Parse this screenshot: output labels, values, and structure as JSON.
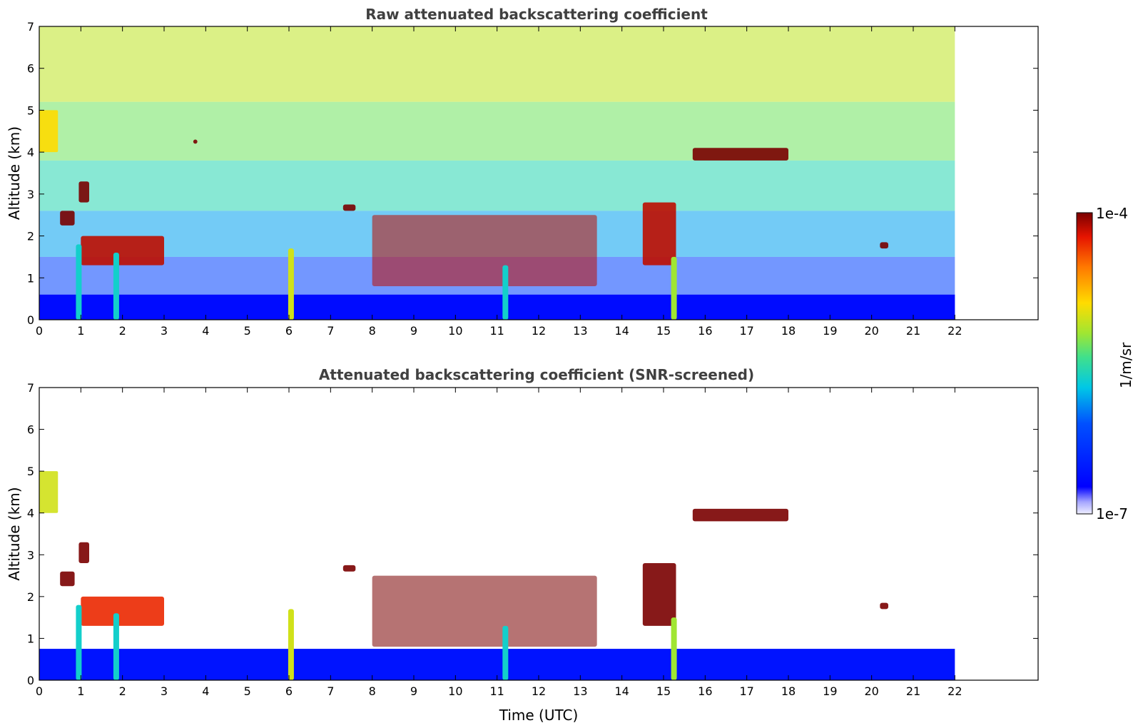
{
  "chart_data": [
    {
      "type": "heatmap",
      "title": "Raw attenuated backscattering coefficient",
      "xlabel": "",
      "ylabel": "Altitude (km)",
      "xlim": [
        0,
        24
      ],
      "ylim": [
        0,
        7
      ],
      "x_ticks": [
        "0",
        "1",
        "2",
        "3",
        "4",
        "5",
        "6",
        "7",
        "8",
        "9",
        "10",
        "11",
        "12",
        "13",
        "14",
        "15",
        "16",
        "17",
        "18",
        "19",
        "20",
        "21",
        "22"
      ],
      "y_ticks": [
        "0",
        "1",
        "2",
        "3",
        "4",
        "5",
        "6",
        "7"
      ],
      "data_end_time": 22,
      "grid": false,
      "features": [
        {
          "kind": "boundary_layer",
          "t_start": 0,
          "t_end": 22,
          "top_km": 0.6,
          "level": 0.12
        },
        {
          "kind": "plume",
          "t_start": 0.0,
          "t_end": 0.45,
          "bottom_km": 4.0,
          "top_km": 5.0,
          "level": 0.7
        },
        {
          "kind": "cloud",
          "t_start": 0.5,
          "t_end": 0.85,
          "bottom_km": 2.25,
          "top_km": 2.6,
          "level": 1.0
        },
        {
          "kind": "cloud",
          "t_start": 0.95,
          "t_end": 1.2,
          "bottom_km": 2.8,
          "top_km": 3.3,
          "level": 1.0
        },
        {
          "kind": "cloud",
          "t_start": 1.0,
          "t_end": 3.0,
          "bottom_km": 1.3,
          "top_km": 2.0,
          "level": 0.95
        },
        {
          "kind": "cloud",
          "t_start": 3.7,
          "t_end": 3.8,
          "bottom_km": 4.2,
          "top_km": 4.3,
          "level": 1.0
        },
        {
          "kind": "cloud",
          "t_start": 7.3,
          "t_end": 7.6,
          "bottom_km": 2.6,
          "top_km": 2.75,
          "level": 1.0
        },
        {
          "kind": "cloud",
          "t_start": 8.0,
          "t_end": 13.4,
          "bottom_km": 0.8,
          "top_km": 2.5,
          "level": 0.95
        },
        {
          "kind": "cloud",
          "t_start": 14.5,
          "t_end": 15.3,
          "bottom_km": 1.3,
          "top_km": 2.8,
          "level": 0.95
        },
        {
          "kind": "cloud",
          "t_start": 15.7,
          "t_end": 18.0,
          "bottom_km": 3.8,
          "top_km": 4.1,
          "level": 1.0
        },
        {
          "kind": "cloud",
          "t_start": 20.2,
          "t_end": 20.4,
          "bottom_km": 1.7,
          "top_km": 1.85,
          "level": 1.0
        },
        {
          "kind": "precipitation",
          "t": 0.95,
          "bottom_km": 0.0,
          "top_km": 1.8,
          "level": 0.45
        },
        {
          "kind": "precipitation",
          "t": 1.85,
          "bottom_km": 0.0,
          "top_km": 1.6,
          "level": 0.45
        },
        {
          "kind": "precipitation",
          "t": 6.05,
          "bottom_km": 0.0,
          "top_km": 1.7,
          "level": 0.65
        },
        {
          "kind": "precipitation",
          "t": 11.2,
          "bottom_km": 0.0,
          "top_km": 1.3,
          "level": 0.45
        },
        {
          "kind": "precipitation",
          "t": 15.25,
          "bottom_km": 0.0,
          "top_km": 1.5,
          "level": 0.6
        }
      ]
    },
    {
      "type": "heatmap",
      "title": "Attenuated backscattering coefficient (SNR-screened)",
      "xlabel": "Time (UTC)",
      "ylabel": "Altitude (km)",
      "xlim": [
        0,
        24
      ],
      "ylim": [
        0,
        7
      ],
      "x_ticks": [
        "0",
        "1",
        "2",
        "3",
        "4",
        "5",
        "6",
        "7",
        "8",
        "9",
        "10",
        "11",
        "12",
        "13",
        "14",
        "15",
        "16",
        "17",
        "18",
        "19",
        "20",
        "21",
        "22"
      ],
      "y_ticks": [
        "0",
        "1",
        "2",
        "3",
        "4",
        "5",
        "6",
        "7"
      ],
      "data_end_time": 22,
      "grid": false,
      "features": [
        {
          "kind": "boundary_layer",
          "t_start": 0,
          "t_end": 22,
          "top_km": 0.75,
          "level": 0.14
        },
        {
          "kind": "plume",
          "t_start": 0.0,
          "t_end": 0.45,
          "bottom_km": 4.0,
          "top_km": 5.0,
          "level": 0.65
        },
        {
          "kind": "cloud",
          "t_start": 0.5,
          "t_end": 0.85,
          "bottom_km": 2.25,
          "top_km": 2.6,
          "level": 1.0
        },
        {
          "kind": "cloud",
          "t_start": 0.95,
          "t_end": 1.2,
          "bottom_km": 2.8,
          "top_km": 3.3,
          "level": 1.0
        },
        {
          "kind": "cloud",
          "t_start": 1.0,
          "t_end": 3.0,
          "bottom_km": 1.3,
          "top_km": 2.0,
          "level": 0.9
        },
        {
          "kind": "cloud",
          "t_start": 7.3,
          "t_end": 7.6,
          "bottom_km": 2.6,
          "top_km": 2.75,
          "level": 1.0
        },
        {
          "kind": "cloud",
          "t_start": 8.0,
          "t_end": 13.4,
          "bottom_km": 0.8,
          "top_km": 2.5,
          "level": 1.0
        },
        {
          "kind": "cloud",
          "t_start": 14.5,
          "t_end": 15.3,
          "bottom_km": 1.3,
          "top_km": 2.8,
          "level": 1.0
        },
        {
          "kind": "cloud",
          "t_start": 15.7,
          "t_end": 18.0,
          "bottom_km": 3.8,
          "top_km": 4.1,
          "level": 1.0
        },
        {
          "kind": "cloud",
          "t_start": 20.2,
          "t_end": 20.4,
          "bottom_km": 1.7,
          "top_km": 1.85,
          "level": 1.0
        },
        {
          "kind": "precipitation",
          "t": 0.95,
          "bottom_km": 0.0,
          "top_km": 1.8,
          "level": 0.45
        },
        {
          "kind": "precipitation",
          "t": 1.85,
          "bottom_km": 0.0,
          "top_km": 1.6,
          "level": 0.45
        },
        {
          "kind": "precipitation",
          "t": 6.05,
          "bottom_km": 0.0,
          "top_km": 1.7,
          "level": 0.65
        },
        {
          "kind": "precipitation",
          "t": 11.2,
          "bottom_km": 0.0,
          "top_km": 1.3,
          "level": 0.45
        },
        {
          "kind": "precipitation",
          "t": 15.25,
          "bottom_km": 0.0,
          "top_km": 1.5,
          "level": 0.6
        }
      ]
    }
  ],
  "colorbar": {
    "max_label": "1e-4",
    "min_label": "1e-7",
    "unit_label": "1/m/sr",
    "colormap": "jet",
    "scale": "log"
  }
}
